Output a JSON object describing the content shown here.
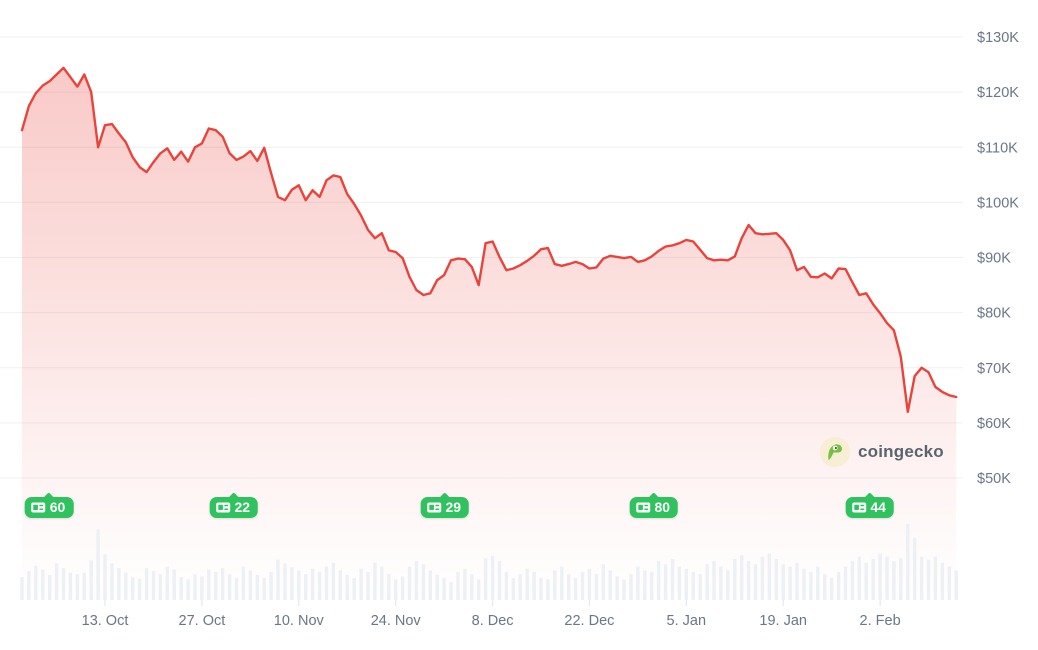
{
  "watermark": {
    "text": "coingecko"
  },
  "colors": {
    "line": "#e8443c",
    "fill_rgb": "232,68,60",
    "badge_green": "#30c25e",
    "axis_text": "#6b7686",
    "gridline": "#eef1f4",
    "volume_bar": "#edf0f4",
    "tick": "#dfe5eb",
    "watermark_text": "#5a646f",
    "watermark_circle": "#f7eed3",
    "gecko_green": "#74bf44",
    "gecko_pupil": "#32402c"
  },
  "y_axis": {
    "labels": [
      "$130K",
      "$120K",
      "$110K",
      "$100K",
      "$90K",
      "$80K",
      "$70K",
      "$60K",
      "$50K"
    ],
    "values": [
      130,
      120,
      110,
      100,
      90,
      80,
      70,
      60,
      50
    ]
  },
  "x_axis": {
    "labels": [
      "13. Oct",
      "27. Oct",
      "10. Nov",
      "24. Nov",
      "8. Dec",
      "22. Dec",
      "5. Jan",
      "19. Jan",
      "2. Feb"
    ],
    "days": [
      12,
      26,
      40,
      54,
      68,
      82,
      96,
      110,
      124
    ]
  },
  "news_badges": [
    {
      "count": "60",
      "day": 3.9
    },
    {
      "count": "22",
      "day": 30.6
    },
    {
      "count": "29",
      "day": 61.1
    },
    {
      "count": "80",
      "day": 91.3
    },
    {
      "count": "44",
      "day": 122.5
    }
  ],
  "chart_data": {
    "type": "area",
    "title": "",
    "xlabel": "",
    "ylabel": "",
    "y_unit": "USD, thousands (K)",
    "ylim": [
      50,
      130
    ],
    "grid": "horizontal",
    "legend": "none",
    "x_tick_labels": [
      "13. Oct",
      "27. Oct",
      "10. Nov",
      "24. Nov",
      "8. Dec",
      "22. Dec",
      "5. Jan",
      "19. Jan",
      "2. Feb"
    ],
    "x_tick_day_index": [
      12,
      26,
      40,
      54,
      68,
      82,
      96,
      110,
      124
    ],
    "x_note": "daily points; day index 12 = 13. Oct, day index 124 = 2. Feb",
    "series": [
      {
        "name": "price_usd_thousands",
        "values": [
          113.1,
          117.5,
          119.8,
          121.2,
          122.0,
          123.2,
          124.4,
          122.7,
          121.0,
          123.2,
          120.0,
          110.0,
          114.0,
          114.2,
          112.5,
          110.9,
          108.2,
          106.4,
          105.5,
          107.3,
          108.9,
          109.8,
          107.7,
          109.2,
          107.4,
          110.0,
          110.7,
          113.4,
          113.1,
          111.9,
          108.9,
          107.7,
          108.3,
          109.3,
          107.5,
          109.9,
          105.3,
          101.0,
          100.4,
          102.3,
          103.1,
          100.4,
          102.2,
          101.0,
          104.0,
          104.9,
          104.6,
          101.5,
          99.7,
          97.6,
          95.0,
          93.5,
          94.4,
          91.3,
          91.0,
          89.9,
          86.5,
          84.1,
          83.2,
          83.5,
          85.9,
          86.8,
          89.5,
          89.8,
          89.7,
          88.3,
          85.0,
          92.6,
          92.9,
          90.1,
          87.7,
          88.0,
          88.6,
          89.4,
          90.3,
          91.5,
          91.7,
          88.8,
          88.5,
          88.8,
          89.2,
          88.8,
          88.0,
          88.2,
          89.8,
          90.3,
          90.1,
          89.9,
          90.1,
          89.2,
          89.5,
          90.2,
          91.2,
          92.0,
          92.2,
          92.6,
          93.2,
          92.9,
          91.4,
          89.9,
          89.5,
          89.6,
          89.5,
          90.2,
          93.5,
          95.9,
          94.4,
          94.2,
          94.3,
          94.4,
          93.2,
          91.3,
          87.7,
          88.3,
          86.5,
          86.4,
          87.1,
          86.2,
          88.0,
          87.9,
          85.5,
          83.2,
          83.5,
          81.5,
          79.9,
          78.1,
          76.8,
          72.0,
          62.0,
          68.5,
          70.0,
          69.2,
          66.5,
          65.6,
          65.0,
          64.7
        ]
      }
    ],
    "volume_bars": {
      "name": "volume_relative",
      "scale": "0-100 relative units",
      "values": [
        30,
        38,
        45,
        40,
        33,
        48,
        42,
        36,
        34,
        36,
        52,
        93,
        60,
        48,
        42,
        36,
        30,
        28,
        42,
        38,
        34,
        44,
        40,
        30,
        27,
        34,
        31,
        40,
        37,
        42,
        34,
        29,
        44,
        39,
        33,
        29,
        37,
        53,
        48,
        43,
        39,
        34,
        41,
        37,
        44,
        49,
        39,
        33,
        29,
        41,
        37,
        49,
        44,
        34,
        27,
        31,
        44,
        51,
        47,
        39,
        33,
        29,
        24,
        37,
        41,
        34,
        27,
        55,
        58,
        51,
        37,
        29,
        34,
        41,
        37,
        29,
        27,
        39,
        44,
        34,
        29,
        37,
        41,
        34,
        47,
        39,
        31,
        27,
        34,
        44,
        39,
        37,
        51,
        47,
        54,
        44,
        41,
        37,
        34,
        47,
        51,
        44,
        39,
        54,
        59,
        51,
        47,
        57,
        61,
        54,
        47,
        44,
        49,
        41,
        37,
        44,
        34,
        29,
        37,
        44,
        51,
        57,
        49,
        54,
        61,
        57,
        51,
        55,
        100,
        82,
        57,
        53,
        57,
        49,
        44,
        39
      ]
    },
    "annotations": [
      {
        "type": "news-count-badge",
        "label": "60",
        "day": 3.9
      },
      {
        "type": "news-count-badge",
        "label": "22",
        "day": 30.6
      },
      {
        "type": "news-count-badge",
        "label": "29",
        "day": 61.1
      },
      {
        "type": "news-count-badge",
        "label": "80",
        "day": 91.3
      },
      {
        "type": "news-count-badge",
        "label": "44",
        "day": 122.5
      }
    ]
  }
}
